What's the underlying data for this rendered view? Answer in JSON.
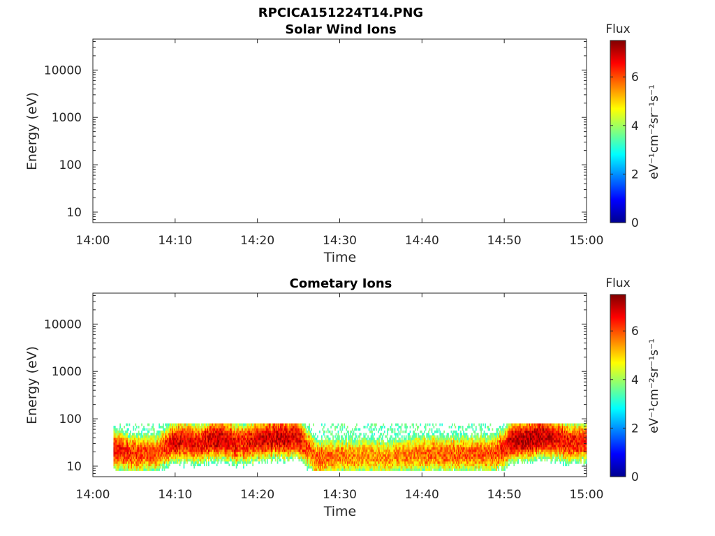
{
  "figure": {
    "title": "RPCICA151224T14.PNG"
  },
  "panels": [
    {
      "title": "Solar Wind Ions",
      "xlabel": "Time",
      "ylabel": "Energy (eV)",
      "x_ticks": [
        "14:00",
        "14:10",
        "14:20",
        "14:30",
        "14:40",
        "14:50",
        "15:00"
      ],
      "y_ticks": [
        "10",
        "100",
        "1000",
        "10000"
      ],
      "colorbar": {
        "title": "Flux",
        "label": "eV⁻¹cm⁻²sr⁻¹s⁻¹",
        "ticks": [
          "0",
          "2",
          "4",
          "6"
        ]
      }
    },
    {
      "title": "Cometary Ions",
      "xlabel": "Time",
      "ylabel": "Energy (eV)",
      "x_ticks": [
        "14:00",
        "14:10",
        "14:20",
        "14:30",
        "14:40",
        "14:50",
        "15:00"
      ],
      "y_ticks": [
        "10",
        "100",
        "1000",
        "10000"
      ],
      "colorbar": {
        "title": "Flux",
        "label": "eV⁻¹cm⁻²sr⁻¹s⁻¹",
        "ticks": [
          "0",
          "2",
          "4",
          "6"
        ]
      }
    }
  ],
  "chart_data": [
    {
      "type": "heatmap",
      "title": "Solar Wind Ions",
      "xlabel": "Time",
      "ylabel": "Energy (eV)",
      "x_range": [
        "14:00",
        "15:00"
      ],
      "y_scale": "log",
      "y_range": [
        6,
        45000
      ],
      "color_scale": "jet",
      "color_range": [
        0,
        7.5
      ],
      "colorbar_label": "Flux",
      "data": []
    },
    {
      "type": "heatmap",
      "title": "Cometary Ions",
      "xlabel": "Time",
      "ylabel": "Energy (eV)",
      "x_range": [
        "14:00",
        "15:00"
      ],
      "y_scale": "log",
      "y_range": [
        6,
        45000
      ],
      "color_scale": "jet",
      "color_range": [
        0,
        7.5
      ],
      "colorbar_label": "Flux",
      "data_extent": {
        "time": [
          "14:02.5",
          "15:00"
        ],
        "energy_eV": [
          8,
          80
        ]
      },
      "band_profile": {
        "times": [
          "14:03",
          "14:05",
          "14:08",
          "14:10",
          "14:13",
          "14:15",
          "14:18",
          "14:20",
          "14:23",
          "14:25",
          "14:26",
          "14:27",
          "14:30",
          "14:35",
          "14:40",
          "14:45",
          "14:49",
          "14:51",
          "14:53",
          "14:55",
          "14:58",
          "15:00"
        ],
        "peak_energy_eV": [
          22,
          18,
          20,
          35,
          30,
          38,
          30,
          35,
          42,
          40,
          25,
          15,
          16,
          16,
          18,
          18,
          18,
          35,
          40,
          42,
          32,
          35
        ],
        "peak_flux": [
          6.5,
          6.2,
          6.0,
          6.8,
          6.6,
          7.0,
          6.5,
          6.8,
          7.0,
          6.8,
          6.0,
          6.0,
          5.7,
          5.5,
          5.8,
          5.9,
          6.0,
          7.0,
          7.2,
          7.0,
          6.5,
          6.5
        ]
      }
    }
  ]
}
